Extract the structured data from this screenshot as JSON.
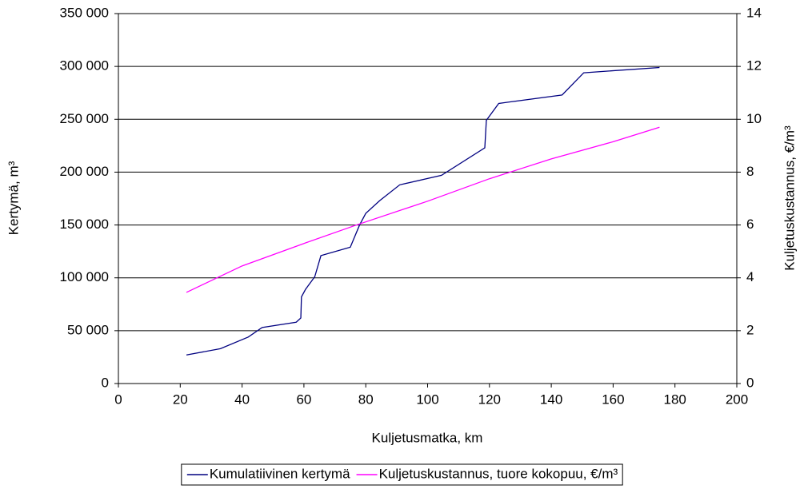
{
  "chart_data": {
    "type": "line",
    "x_label": "Kuljetusmatka, km",
    "y_label": "Kertymä, m³",
    "y2_label": "Kuljetuskustannus, €/m³",
    "xlim": [
      0,
      200
    ],
    "xticks": [
      0,
      20,
      40,
      60,
      80,
      100,
      120,
      140,
      160,
      180,
      200
    ],
    "ylim": [
      0,
      350000
    ],
    "yticks": [
      {
        "value": 0,
        "label": "0"
      },
      {
        "value": 50000,
        "label": "50 000"
      },
      {
        "value": 100000,
        "label": "100 000"
      },
      {
        "value": 150000,
        "label": "150 000"
      },
      {
        "value": 200000,
        "label": "200 000"
      },
      {
        "value": 250000,
        "label": "250 000"
      },
      {
        "value": 300000,
        "label": "300 000"
      },
      {
        "value": 350000,
        "label": "350 000"
      }
    ],
    "y2lim": [
      0,
      14
    ],
    "y2ticks": [
      0,
      2,
      4,
      6,
      8,
      10,
      12,
      14
    ],
    "grid": true,
    "legend": "bottom",
    "series": [
      {
        "name": "Kumulatiivinen kertymä",
        "color": "#000080",
        "x": [
          22,
          33,
          42,
          46.5,
          57.5,
          59,
          59.2,
          60.5,
          63.5,
          65.5,
          75,
          78,
          80,
          84.5,
          91,
          104.5,
          118.5,
          119,
          123,
          143.5,
          150.5,
          175
        ],
        "values": [
          27000,
          33000,
          44000,
          53000,
          58000,
          62000,
          82000,
          89000,
          101000,
          121000,
          129000,
          150000,
          161000,
          173000,
          188000,
          197000,
          223000,
          249000,
          265000,
          273000,
          294000,
          299000
        ]
      },
      {
        "name": "Kuljetuskustannus, tuore kokopuu, €/m³",
        "color": "#ff00ff",
        "axis": "y2",
        "x": [
          22,
          40,
          60,
          77,
          100,
          120,
          140,
          160,
          175
        ],
        "values": [
          3.45,
          4.45,
          5.3,
          6.0,
          6.9,
          7.75,
          8.5,
          9.15,
          9.7
        ]
      }
    ]
  }
}
